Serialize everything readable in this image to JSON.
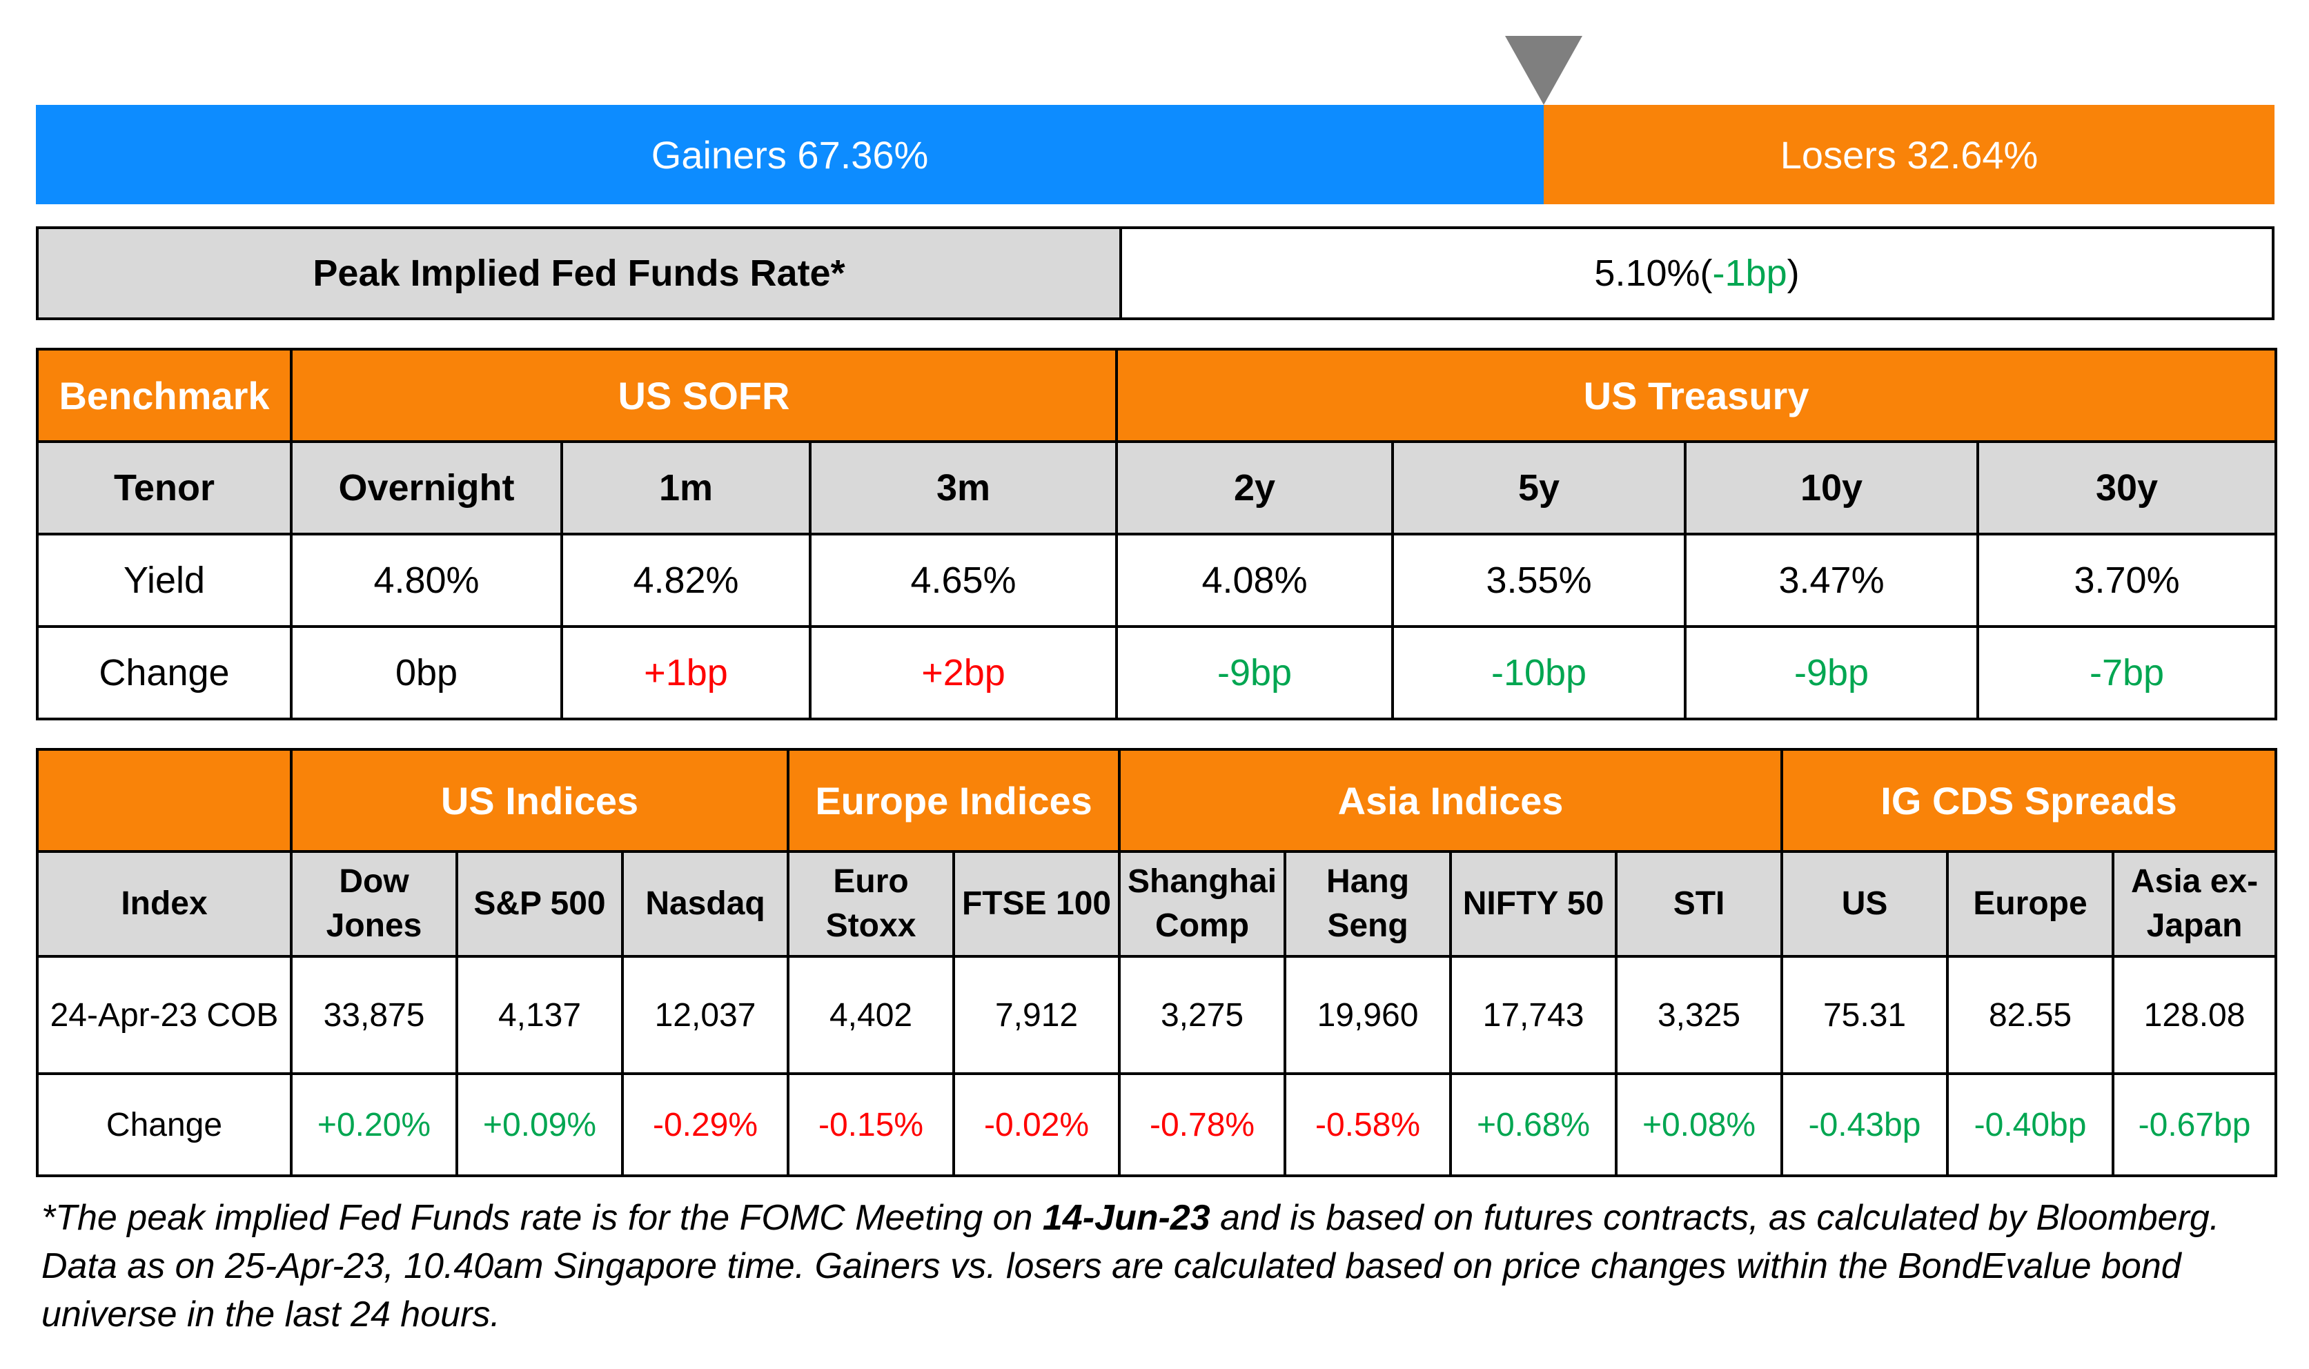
{
  "market_breadth": {
    "gainers_label": "Gainers 67.36%",
    "losers_label": "Losers 32.64%",
    "gainers_share": 0.6736,
    "losers_share": 0.3264,
    "colors": {
      "gainers": "#0d8cff",
      "losers": "#f98309",
      "marker": "#7f7f7f"
    }
  },
  "peak_rate": {
    "label": "Peak Implied Fed Funds Rate*",
    "value": "5.10%",
    "open_paren": " (",
    "change": "-1bp",
    "close_paren": ")"
  },
  "rates_table": {
    "benchmark_label": "Benchmark",
    "group_sofr": "US SOFR",
    "group_treasury": "US Treasury",
    "tenor_label": "Tenor",
    "yield_label": "Yield",
    "change_label": "Change",
    "columns": [
      {
        "tenor": "Overnight",
        "yield": "4.80%",
        "change": "0bp"
      },
      {
        "tenor": "1m",
        "yield": "4.82%",
        "change": "+1bp"
      },
      {
        "tenor": "3m",
        "yield": "4.65%",
        "change": "+2bp"
      },
      {
        "tenor": "2y",
        "yield": "4.08%",
        "change": "-9bp"
      },
      {
        "tenor": "5y",
        "yield": "3.55%",
        "change": "-10bp"
      },
      {
        "tenor": "10y",
        "yield": "3.47%",
        "change": "-9bp"
      },
      {
        "tenor": "30y",
        "yield": "3.70%",
        "change": "-7bp"
      }
    ]
  },
  "indices_table": {
    "groups": {
      "us": "US Indices",
      "europe": "Europe Indices",
      "asia": "Asia Indices",
      "cds": "IG CDS Spreads"
    },
    "index_label": "Index",
    "date_label": "24-Apr-23 COB",
    "change_label": "Change",
    "columns": [
      {
        "name_l1": "Dow",
        "name_l2": "Jones",
        "value": "33,875",
        "change": "+0.20%"
      },
      {
        "name_l1": "S&P 500",
        "name_l2": "",
        "value": "4,137",
        "change": "+0.09%"
      },
      {
        "name_l1": "Nasdaq",
        "name_l2": "",
        "value": "12,037",
        "change": "-0.29%"
      },
      {
        "name_l1": "Euro",
        "name_l2": "Stoxx",
        "value": "4,402",
        "change": "-0.15%"
      },
      {
        "name_l1": "FTSE 100",
        "name_l2": "",
        "value": "7,912",
        "change": "-0.02%"
      },
      {
        "name_l1": "Shanghai",
        "name_l2": "Comp",
        "value": "3,275",
        "change": "-0.78%"
      },
      {
        "name_l1": "Hang",
        "name_l2": "Seng",
        "value": "19,960",
        "change": "-0.58%"
      },
      {
        "name_l1": "NIFTY 50",
        "name_l2": "",
        "value": "17,743",
        "change": "+0.68%"
      },
      {
        "name_l1": "STI",
        "name_l2": "",
        "value": "3,325",
        "change": "+0.08%"
      },
      {
        "name_l1": "US",
        "name_l2": "",
        "value": "75.31",
        "change": "-0.43bp"
      },
      {
        "name_l1": "Europe",
        "name_l2": "",
        "value": "82.55",
        "change": "-0.40bp"
      },
      {
        "name_l1": "Asia ex-",
        "name_l2": "Japan",
        "value": "128.08",
        "change": "-0.67bp"
      }
    ]
  },
  "footnote": {
    "part1": "*The peak implied Fed Funds rate is for the FOMC Meeting on ",
    "date": "14-Jun-23",
    "part2": " and is based on futures contracts, as calculated by Bloomberg. Data as on 25-Apr-23, 10.40am Singapore time. Gainers vs. losers are calculated based on price changes within the BondEvalue bond universe in the last 24 hours."
  },
  "colors": {
    "header_orange": "#f98309",
    "header_grey": "#d9d9d9",
    "positive_green": "#00a651",
    "negative_red": "#ff0000"
  }
}
